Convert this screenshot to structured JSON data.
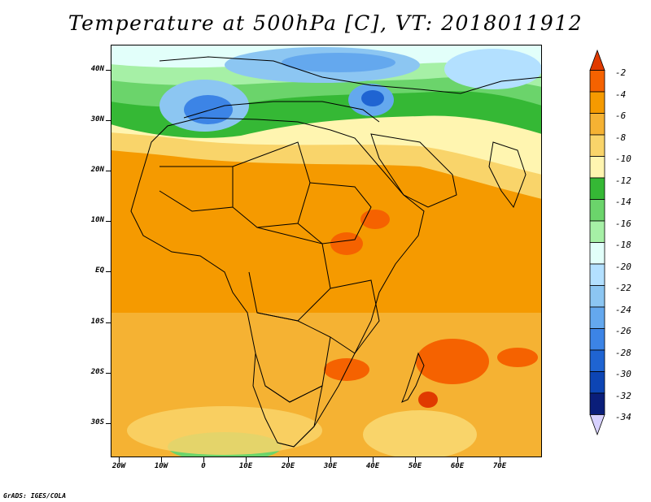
{
  "title": "Temperature at 500hPa [C], VT: 2018011912",
  "credit": "GrADS: IGES/COLA",
  "y_axis": {
    "ticks": [
      "40N",
      "30N",
      "20N",
      "10N",
      "EQ",
      "10S",
      "20S",
      "30S"
    ]
  },
  "x_axis": {
    "ticks": [
      "20W",
      "10W",
      "0",
      "10E",
      "20E",
      "30E",
      "40E",
      "50E",
      "60E",
      "70E"
    ]
  },
  "colorbar": {
    "colors": [
      "#e03a00",
      "#f56200",
      "#f59a00",
      "#f5b233",
      "#f9d46a",
      "#fff5b0",
      "#35b835",
      "#6bd46b",
      "#a6f0a6",
      "#e2fffa",
      "#b3e0ff",
      "#8cc6f2",
      "#64a8ee",
      "#3c84e6",
      "#1f64d2",
      "#0d45b4",
      "#0a1e7a",
      "#d7d1ff"
    ],
    "labels": [
      "-2",
      "-4",
      "-6",
      "-8",
      "-10",
      "-12",
      "-14",
      "-16",
      "-18",
      "-20",
      "-22",
      "-24",
      "-26",
      "-28",
      "-30",
      "-32",
      "-34"
    ]
  }
}
